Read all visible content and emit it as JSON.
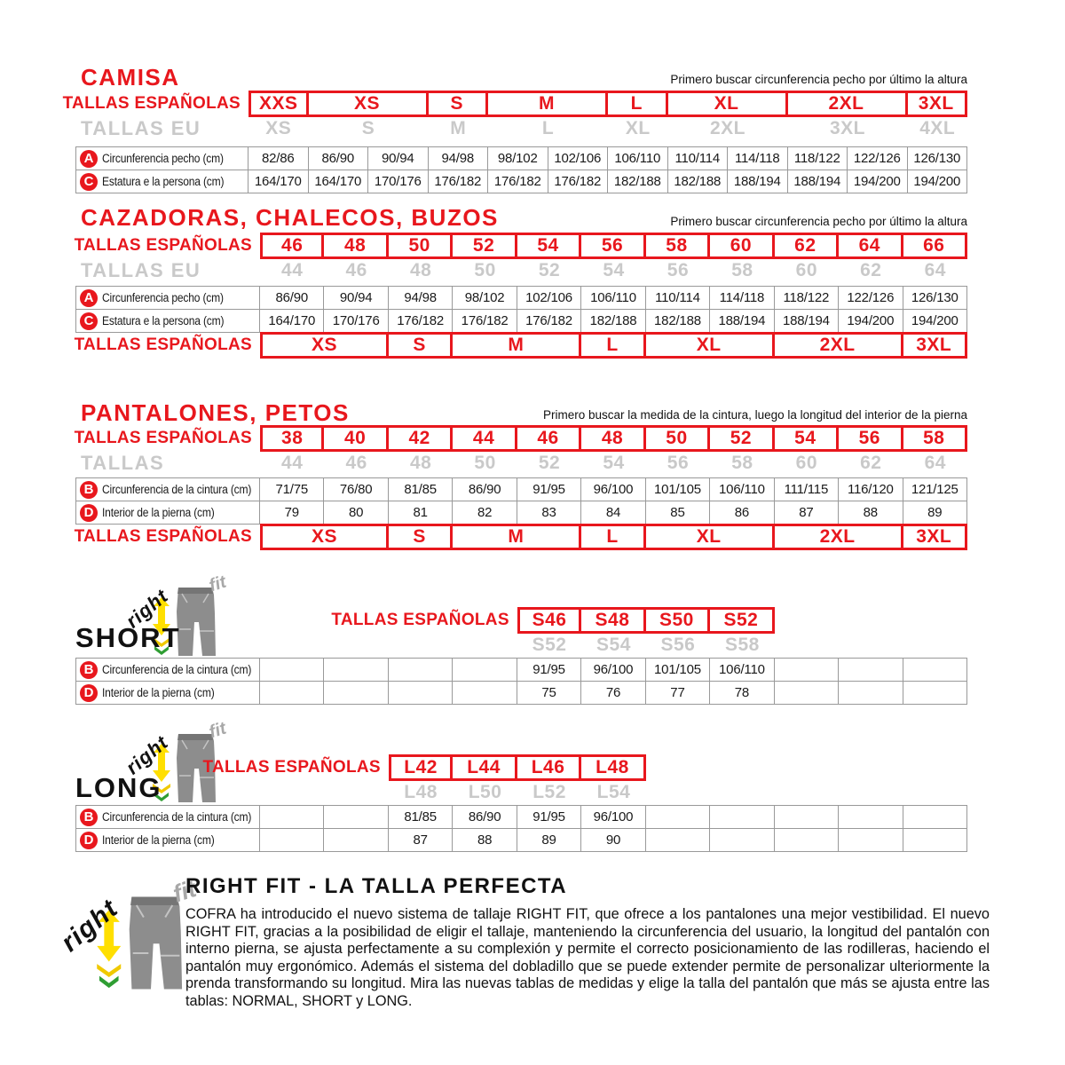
{
  "page": {
    "colors": {
      "red": "#e8171d",
      "grey_text": "#c9c9c9",
      "border": "#999999",
      "yellow": "#ffdf00",
      "green": "#2f9e33",
      "black": "#111111"
    }
  },
  "camisa": {
    "title": "CAMISA",
    "note": "Primero buscar circunferencia pecho por último la altura",
    "es_label": "TALLAS ESPAÑOLAS",
    "eu_label": "TALLAS EU",
    "es_sizes": [
      {
        "label": "XXS",
        "span": 1
      },
      {
        "label": "XS",
        "span": 2
      },
      {
        "label": "S",
        "span": 1
      },
      {
        "label": "M",
        "span": 2
      },
      {
        "label": "L",
        "span": 1
      },
      {
        "label": "XL",
        "span": 2
      },
      {
        "label": "2XL",
        "span": 2
      },
      {
        "label": "3XL",
        "span": 1
      }
    ],
    "eu_sizes": [
      {
        "label": "XS",
        "span": 1
      },
      {
        "label": "S",
        "span": 2
      },
      {
        "label": "M",
        "span": 1
      },
      {
        "label": "L",
        "span": 2
      },
      {
        "label": "XL",
        "span": 1
      },
      {
        "label": "2XL",
        "span": 2
      },
      {
        "label": "3XL",
        "span": 2
      },
      {
        "label": "4XL",
        "span": 1
      }
    ],
    "rows": [
      {
        "letter": "A",
        "label": "Circunferencia pecho (cm)",
        "values": [
          "82/86",
          "86/90",
          "90/94",
          "94/98",
          "98/102",
          "102/106",
          "106/110",
          "110/114",
          "114/118",
          "118/122",
          "122/126",
          "126/130"
        ]
      },
      {
        "letter": "C",
        "label": "Estatura e la persona (cm)",
        "values": [
          "164/170",
          "164/170",
          "170/176",
          "176/182",
          "176/182",
          "176/182",
          "182/188",
          "182/188",
          "188/194",
          "188/194",
          "194/200",
          "194/200"
        ]
      }
    ]
  },
  "cazadoras": {
    "title": "CAZADORAS, CHALECOS, BUZOS",
    "note": "Primero buscar circunferencia pecho por último la altura",
    "es_label": "TALLAS ESPAÑOLAS",
    "eu_label": "TALLAS EU",
    "es_sizes": [
      "46",
      "48",
      "50",
      "52",
      "54",
      "56",
      "58",
      "60",
      "62",
      "64",
      "66"
    ],
    "eu_sizes": [
      "44",
      "46",
      "48",
      "50",
      "52",
      "54",
      "56",
      "58",
      "60",
      "62",
      "64"
    ],
    "rows": [
      {
        "letter": "A",
        "label": "Circunferencia pecho (cm)",
        "values": [
          "86/90",
          "90/94",
          "94/98",
          "98/102",
          "102/106",
          "106/110",
          "110/114",
          "114/118",
          "118/122",
          "122/126",
          "126/130"
        ]
      },
      {
        "letter": "C",
        "label": "Estatura e la persona (cm)",
        "values": [
          "164/170",
          "170/176",
          "176/182",
          "176/182",
          "176/182",
          "182/188",
          "182/188",
          "188/194",
          "188/194",
          "194/200",
          "194/200"
        ]
      }
    ],
    "bottom_label": "TALLAS ESPAÑOLAS",
    "bottom_sizes": [
      {
        "label": "XS",
        "span": 2
      },
      {
        "label": "S",
        "span": 1
      },
      {
        "label": "M",
        "span": 2
      },
      {
        "label": "L",
        "span": 1
      },
      {
        "label": "XL",
        "span": 2
      },
      {
        "label": "2XL",
        "span": 2
      },
      {
        "label": "3XL",
        "span": 1
      }
    ]
  },
  "pantalones": {
    "title": "PANTALONES, PETOS",
    "note": "Primero buscar la medida de la cintura, luego la longitud del interior de la pierna",
    "es_label": "TALLAS ESPAÑOLAS",
    "eu_label": "TALLAS",
    "es_sizes": [
      "38",
      "40",
      "42",
      "44",
      "46",
      "48",
      "50",
      "52",
      "54",
      "56",
      "58"
    ],
    "eu_sizes": [
      "44",
      "46",
      "48",
      "50",
      "52",
      "54",
      "56",
      "58",
      "60",
      "62",
      "64"
    ],
    "rows": [
      {
        "letter": "B",
        "label": "Circunferencia de la cintura (cm)",
        "values": [
          "71/75",
          "76/80",
          "81/85",
          "86/90",
          "91/95",
          "96/100",
          "101/105",
          "106/110",
          "111/115",
          "116/120",
          "121/125"
        ]
      },
      {
        "letter": "D",
        "label": "Interior de la pierna (cm)",
        "values": [
          "79",
          "80",
          "81",
          "82",
          "83",
          "84",
          "85",
          "86",
          "87",
          "88",
          "89"
        ]
      }
    ],
    "bottom_label": "TALLAS ESPAÑOLAS",
    "bottom_sizes": [
      {
        "label": "XS",
        "span": 2
      },
      {
        "label": "S",
        "span": 1
      },
      {
        "label": "M",
        "span": 2
      },
      {
        "label": "L",
        "span": 1
      },
      {
        "label": "XL",
        "span": 2
      },
      {
        "label": "2XL",
        "span": 2
      },
      {
        "label": "3XL",
        "span": 1
      }
    ]
  },
  "short_table": {
    "heading": "SHORT",
    "es_label": "TALLAS ESPAÑOLAS",
    "red_sizes": [
      "S46",
      "S48",
      "S50",
      "S52"
    ],
    "grey_sizes": [
      "S52",
      "S54",
      "S56",
      "S58"
    ],
    "rows": [
      {
        "letter": "B",
        "label": "Circunferencia de la cintura (cm)",
        "values": [
          "",
          "",
          "",
          "",
          "91/95",
          "96/100",
          "101/105",
          "106/110",
          "",
          "",
          ""
        ]
      },
      {
        "letter": "D",
        "label": "Interior de la pierna (cm)",
        "values": [
          "",
          "",
          "",
          "",
          "75",
          "76",
          "77",
          "78",
          "",
          "",
          ""
        ]
      }
    ]
  },
  "long_table": {
    "heading": "LONG",
    "es_label": "TALLAS ESPAÑOLAS",
    "red_sizes": [
      "L42",
      "L44",
      "L46",
      "L48"
    ],
    "grey_sizes": [
      "L48",
      "L50",
      "L52",
      "L54"
    ],
    "rows": [
      {
        "letter": "B",
        "label": "Circunferencia de la cintura (cm)",
        "values": [
          "",
          "",
          "81/85",
          "86/90",
          "91/95",
          "96/100",
          "",
          "",
          "",
          "",
          ""
        ]
      },
      {
        "letter": "D",
        "label": "Interior de la pierna (cm)",
        "values": [
          "",
          "",
          "87",
          "88",
          "89",
          "90",
          "",
          "",
          "",
          "",
          ""
        ]
      }
    ]
  },
  "rightfit": {
    "logo_right": "right",
    "logo_fit": "fit",
    "heading": "RIGHT FIT - LA TALLA PERFECTA",
    "paragraph": "COFRA ha introducido el nuevo sistema de tallaje RIGHT FIT, que ofrece a los pantalones una mejor vestibilidad. El nuevo RIGHT FIT, gracias a la posibilidad de eligir el tallaje, manteniendo la circunferencia del usuario, la longitud del pantalón con interno pierna, se ajusta perfectamente a su complexión y permite el correcto posicionamiento de las rodilleras, haciendo el pantalón muy ergonómico. Además el sistema del dobladillo que se puede extender permite de personalizar ulteriormente la prenda transformando su longitud. Mira las nuevas tablas de medidas y elige la talla del pantalón que más se ajusta entre las tablas: NORMAL, SHORT y LONG."
  }
}
